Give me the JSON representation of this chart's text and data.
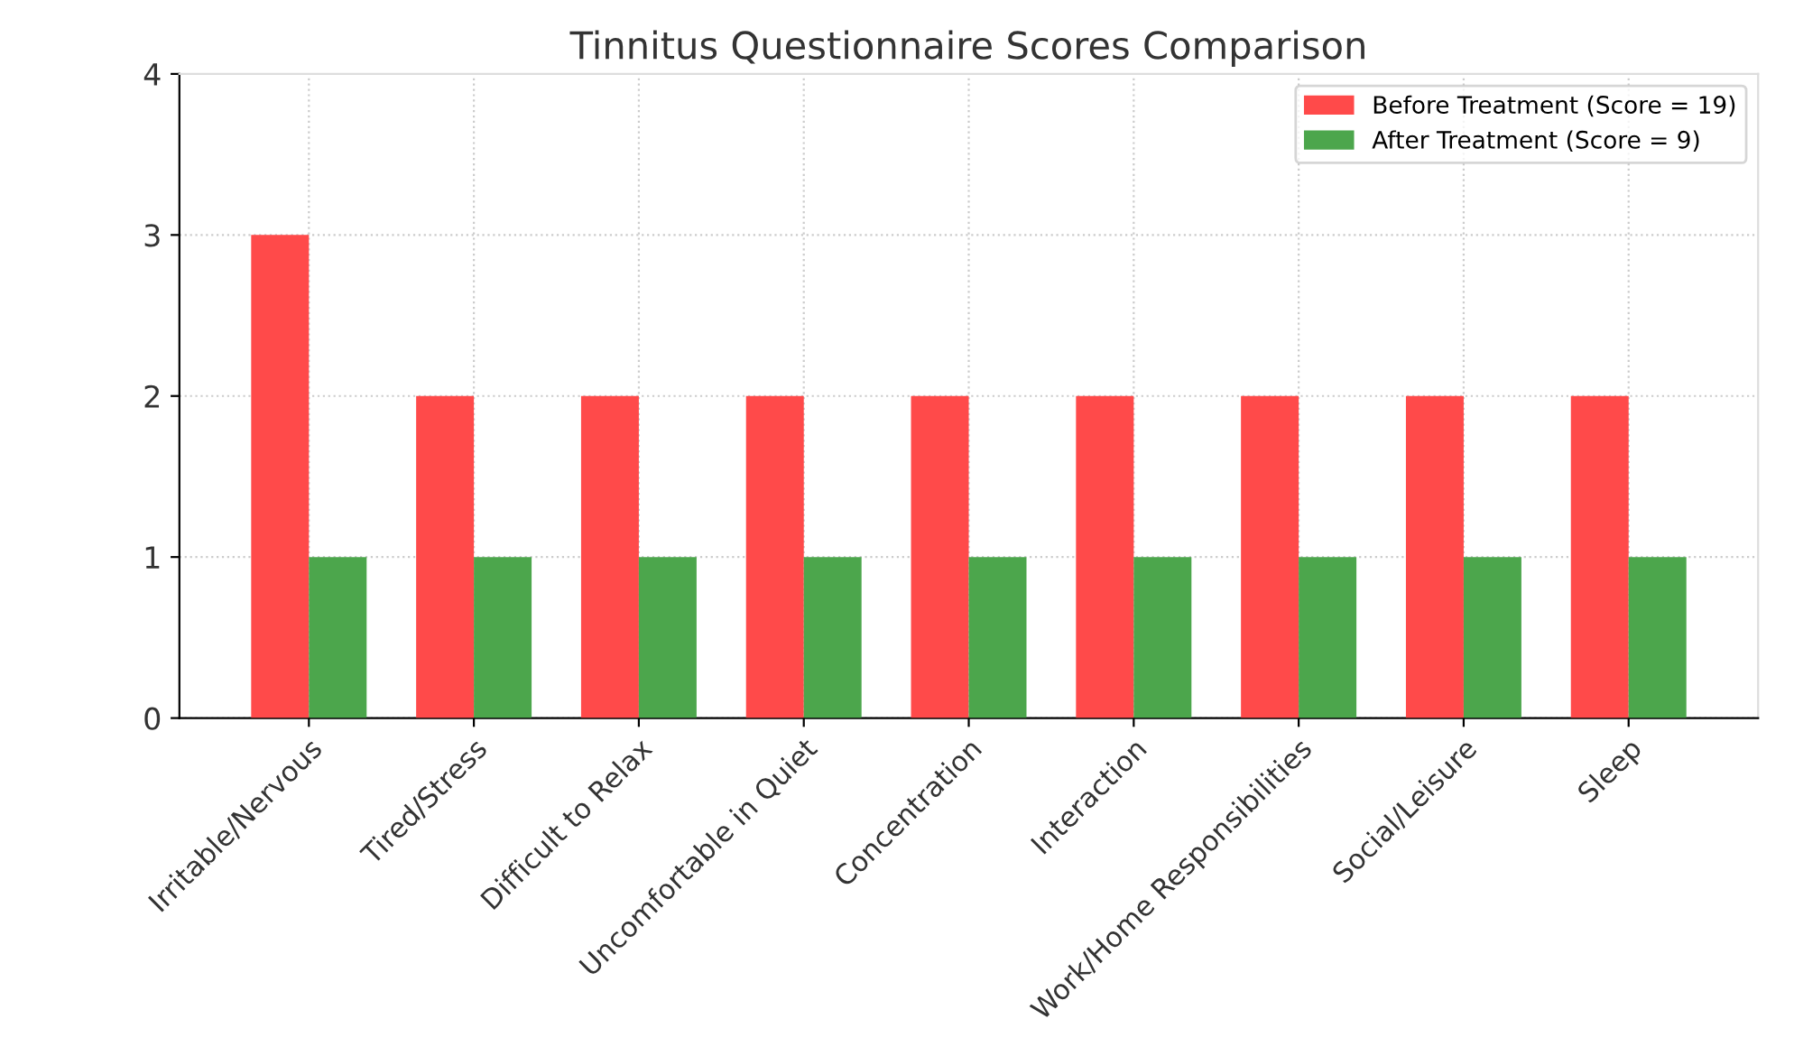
{
  "chart_data": {
    "type": "bar",
    "title": "Tinnitus Questionnaire Scores Comparison",
    "categories": [
      "Irritable/Nervous",
      "Tired/Stress",
      "Difficult to Relax",
      "Uncomfortable in Quiet",
      "Concentration",
      "Interaction",
      "Work/Home Responsibilities",
      "Social/Leisure",
      "Sleep"
    ],
    "series": [
      {
        "name": "Before Treatment (Score = 19)",
        "color": "#ff4a4a",
        "values": [
          3,
          2,
          2,
          2,
          2,
          2,
          2,
          2,
          2
        ]
      },
      {
        "name": "After Treatment (Score = 9)",
        "color": "#4ca64c",
        "values": [
          1,
          1,
          1,
          1,
          1,
          1,
          1,
          1,
          1
        ]
      }
    ],
    "ylim": [
      0,
      4
    ],
    "yticks": [
      0,
      1,
      2,
      3,
      4
    ],
    "grid": true,
    "legend": "top right"
  }
}
